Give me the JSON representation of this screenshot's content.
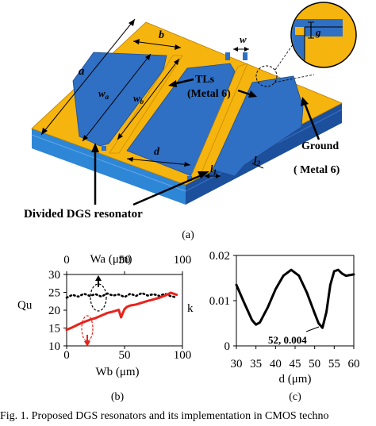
{
  "figure": {
    "panel_a_label": "(a)",
    "panel_b_label": "(b)",
    "panel_c_label": "(c)",
    "caption": "Fig. 1.   Proposed DGS resonators and its implementation in CMOS techno",
    "colors": {
      "gold": "#F6B40E",
      "blue": "#2F6FC4",
      "substrate_light": "#2E86D6",
      "substrate_dark": "#1C4F9C",
      "series_red": "#E8231C"
    },
    "diagram": {
      "dim_b": "b",
      "dim_w": "w",
      "dim_a": "a",
      "dim_wa": "w",
      "dim_wa_sub": "a",
      "dim_wb": "w",
      "dim_wb_sub": "b",
      "dim_d": "d",
      "dim_l1": "l",
      "dim_l1_sub": "1",
      "dim_l2": "l",
      "dim_l2_sub": "2",
      "dim_g": "g",
      "tl_label_1": "TLs",
      "tl_label_2": "(Metal 6)",
      "ground_label_1": "Ground",
      "ground_label_2": "( Metal 6)",
      "dgs_label": "Divided DGS resonator"
    }
  },
  "chart_data": [
    {
      "type": "line",
      "panel": "b",
      "top_axis_title": "Wa (μm)",
      "xlabel": "Wb (μm)",
      "ylabel_left": "Qu",
      "ylabel_right": "k",
      "top_ticks": [
        "0",
        "50",
        "100"
      ],
      "left_ticks": [
        "30",
        "25",
        "20",
        "15",
        "10"
      ],
      "bottom_ticks": [
        "0",
        "50",
        "100"
      ],
      "xlim": [
        0,
        100
      ],
      "ylim": [
        10,
        30
      ],
      "series": [
        {
          "style": "dotted",
          "color": "#000000",
          "x": [
            0,
            5,
            10,
            15,
            20,
            25,
            30,
            35,
            40,
            45,
            50,
            55,
            60,
            65,
            70,
            75,
            80,
            85,
            90,
            95
          ],
          "values": [
            23.5,
            24.3,
            23.8,
            24.6,
            24.0,
            24.5,
            23.8,
            24.7,
            24.1,
            24.4,
            23.7,
            24.6,
            24.0,
            24.8,
            24.1,
            24.5,
            24.0,
            24.6,
            23.9,
            23.6
          ]
        },
        {
          "style": "solid",
          "color": "#E8231C",
          "x": [
            0,
            5,
            10,
            15,
            20,
            25,
            30,
            35,
            40,
            45,
            47,
            50,
            52,
            55,
            60,
            65,
            70,
            75,
            80,
            85,
            90,
            95
          ],
          "values": [
            14.5,
            15.2,
            16.0,
            16.7,
            17.3,
            17.8,
            18.5,
            19.2,
            19.6,
            20.1,
            18.0,
            20.3,
            20.9,
            21.3,
            21.6,
            22.1,
            22.6,
            23.0,
            23.5,
            24.1,
            24.9,
            24.3
          ]
        }
      ]
    },
    {
      "type": "line",
      "panel": "c",
      "xlabel": "d (μm)",
      "x_ticks": [
        "30",
        "35",
        "40",
        "45",
        "50",
        "55",
        "60"
      ],
      "y_ticks": [
        "0.02",
        "0.01",
        "0"
      ],
      "xlim": [
        30,
        60
      ],
      "ylim": [
        0,
        0.02
      ],
      "annotation": "52, 0.004",
      "series": [
        {
          "style": "solid",
          "color": "#000000",
          "x": [
            30,
            32,
            34,
            35,
            36,
            38,
            40,
            42,
            44,
            46,
            48,
            50,
            51,
            52,
            53,
            54,
            55,
            56,
            57,
            58,
            60
          ],
          "values": [
            0.0135,
            0.0095,
            0.0057,
            0.0047,
            0.0052,
            0.0085,
            0.0125,
            0.0155,
            0.0168,
            0.0155,
            0.0118,
            0.0072,
            0.005,
            0.004,
            0.0075,
            0.0135,
            0.0165,
            0.0168,
            0.016,
            0.0155,
            0.0158
          ]
        }
      ]
    }
  ]
}
